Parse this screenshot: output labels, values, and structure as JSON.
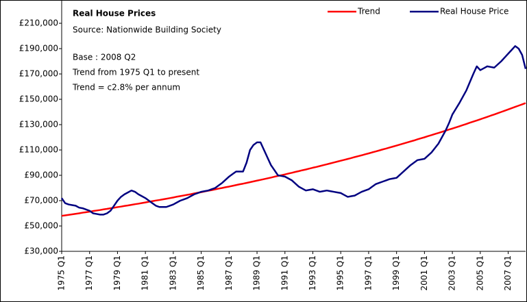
{
  "chart_data": {
    "type": "line",
    "title": "Real House Prices",
    "subtitle": "Source: Nationwide Building Society",
    "annotations": [
      "Base : 2008 Q2",
      "Trend from 1975 Q1 to present",
      "Trend = c2.8% per annum"
    ],
    "categories": [
      "1975 Q1",
      null,
      null,
      null,
      null,
      null,
      null,
      null,
      "1977 Q1",
      null,
      null,
      null,
      null,
      null,
      null,
      null,
      "1979 Q1",
      null,
      null,
      null,
      null,
      null,
      null,
      null,
      "1981 Q1",
      null,
      null,
      null,
      null,
      null,
      null,
      null,
      "1983 Q1",
      null,
      null,
      null,
      null,
      null,
      null,
      null,
      "1985 Q1",
      null,
      null,
      null,
      null,
      null,
      null,
      null,
      "1987 Q1",
      null,
      null,
      null,
      null,
      null,
      null,
      null,
      "1989 Q1",
      null,
      null,
      null,
      null,
      null,
      null,
      null,
      "1991 Q1",
      null,
      null,
      null,
      null,
      null,
      null,
      null,
      "1993 Q1",
      null,
      null,
      null,
      null,
      null,
      null,
      null,
      "1995 Q1",
      null,
      null,
      null,
      null,
      null,
      null,
      null,
      "1997 Q1",
      null,
      null,
      null,
      null,
      null,
      null,
      null,
      "1999 Q1",
      null,
      null,
      null,
      null,
      null,
      null,
      null,
      "2001 Q1",
      null,
      null,
      null,
      null,
      null,
      null,
      null,
      "2003 Q1",
      null,
      null,
      null,
      null,
      null,
      null,
      null,
      "2005 Q1",
      null,
      null,
      null,
      null,
      null,
      null,
      null,
      "2007 Q1",
      null,
      null,
      null,
      null,
      null
    ],
    "series": [
      {
        "name": "Trend",
        "color": "#ff0000",
        "values": [
          58000,
          58400,
          58800,
          59200,
          59600,
          60000,
          60500,
          60900,
          61300,
          61800,
          62200,
          62600,
          63100,
          63500,
          64000,
          64400,
          64900,
          65300,
          65800,
          66200,
          66700,
          67200,
          67600,
          68100,
          68600,
          69100,
          69600,
          70100,
          70500,
          71000,
          71500,
          72000,
          72500,
          73100,
          73600,
          74100,
          74600,
          75100,
          75700,
          76200,
          76700,
          77300,
          77800,
          78300,
          78900,
          79500,
          80000,
          80600,
          81100,
          81700,
          82300,
          82900,
          83400,
          84000,
          84600,
          85200,
          85800,
          86400,
          87000,
          87600,
          88200,
          88900,
          89500,
          90100,
          90700,
          91400,
          92000,
          92700,
          93300,
          94000,
          94600,
          95300,
          96000,
          96600,
          97300,
          98000,
          98700,
          99400,
          100100,
          100800,
          101500,
          102200,
          102900,
          103600,
          104400,
          105100,
          105800,
          106600,
          107300,
          108100,
          108800,
          109600,
          110400,
          111100,
          111900,
          112700,
          113500,
          114300,
          115100,
          115900,
          116700,
          117500,
          118400,
          119200,
          120000,
          120900,
          121700,
          122600,
          123400,
          124300,
          125200,
          126100,
          126900,
          127800,
          128700,
          129600,
          130500,
          131500,
          132400,
          133300,
          134200,
          135200,
          136100,
          137100,
          138000,
          139000,
          140000,
          141000,
          142000,
          143000,
          144000,
          145000,
          146000,
          147000
        ]
      },
      {
        "name": "Real House Price",
        "color": "#000080",
        "values": [
          72000,
          68000,
          67000,
          66500,
          66000,
          64500,
          64000,
          63000,
          62000,
          60000,
          59500,
          59000,
          59000,
          60000,
          62000,
          66000,
          70000,
          73000,
          75000,
          76500,
          78000,
          77000,
          75000,
          73500,
          72000,
          70000,
          68000,
          66000,
          65000,
          65000,
          65000,
          66000,
          67000,
          68500,
          70000,
          71000,
          72000,
          73500,
          75000,
          76000,
          77000,
          77500,
          78000,
          79000,
          80000,
          82000,
          84000,
          86500,
          89000,
          91000,
          93000,
          93000,
          93000,
          100000,
          110000,
          114000,
          116000,
          116000,
          110000,
          104000,
          98000,
          94000,
          90000,
          89500,
          89000,
          87500,
          86000,
          83500,
          81000,
          79500,
          78000,
          78500,
          79000,
          78000,
          77000,
          77500,
          78000,
          77500,
          77000,
          76500,
          76000,
          74500,
          73000,
          73500,
          74000,
          75500,
          77000,
          78000,
          79000,
          81000,
          83000,
          84000,
          85000,
          86000,
          87000,
          87500,
          88000,
          90500,
          93000,
          95500,
          98000,
          100000,
          102000,
          102500,
          103000,
          105500,
          108000,
          111500,
          115000,
          120000,
          125000,
          131000,
          138000,
          142500,
          147000,
          152000,
          157000,
          163500,
          170000,
          176000,
          173000,
          174500,
          176000,
          175500,
          175000,
          177500,
          180000,
          183000,
          186000,
          189000,
          192000,
          190000,
          185000,
          174000
        ]
      }
    ],
    "ylim": [
      30000,
      210000
    ],
    "yticks": [
      {
        "value": 30000,
        "label": "£30,000"
      },
      {
        "value": 50000,
        "label": "£50,000"
      },
      {
        "value": 70000,
        "label": "£70,000"
      },
      {
        "value": 90000,
        "label": "£90,000"
      },
      {
        "value": 110000,
        "label": "£110,000"
      },
      {
        "value": 130000,
        "label": "£130,000"
      },
      {
        "value": 150000,
        "label": "£150,000"
      },
      {
        "value": 170000,
        "label": "£170,000"
      },
      {
        "value": 190000,
        "label": "£190,000"
      },
      {
        "value": 210000,
        "label": "£210,000"
      }
    ],
    "grid": false,
    "legend": "top-right"
  }
}
